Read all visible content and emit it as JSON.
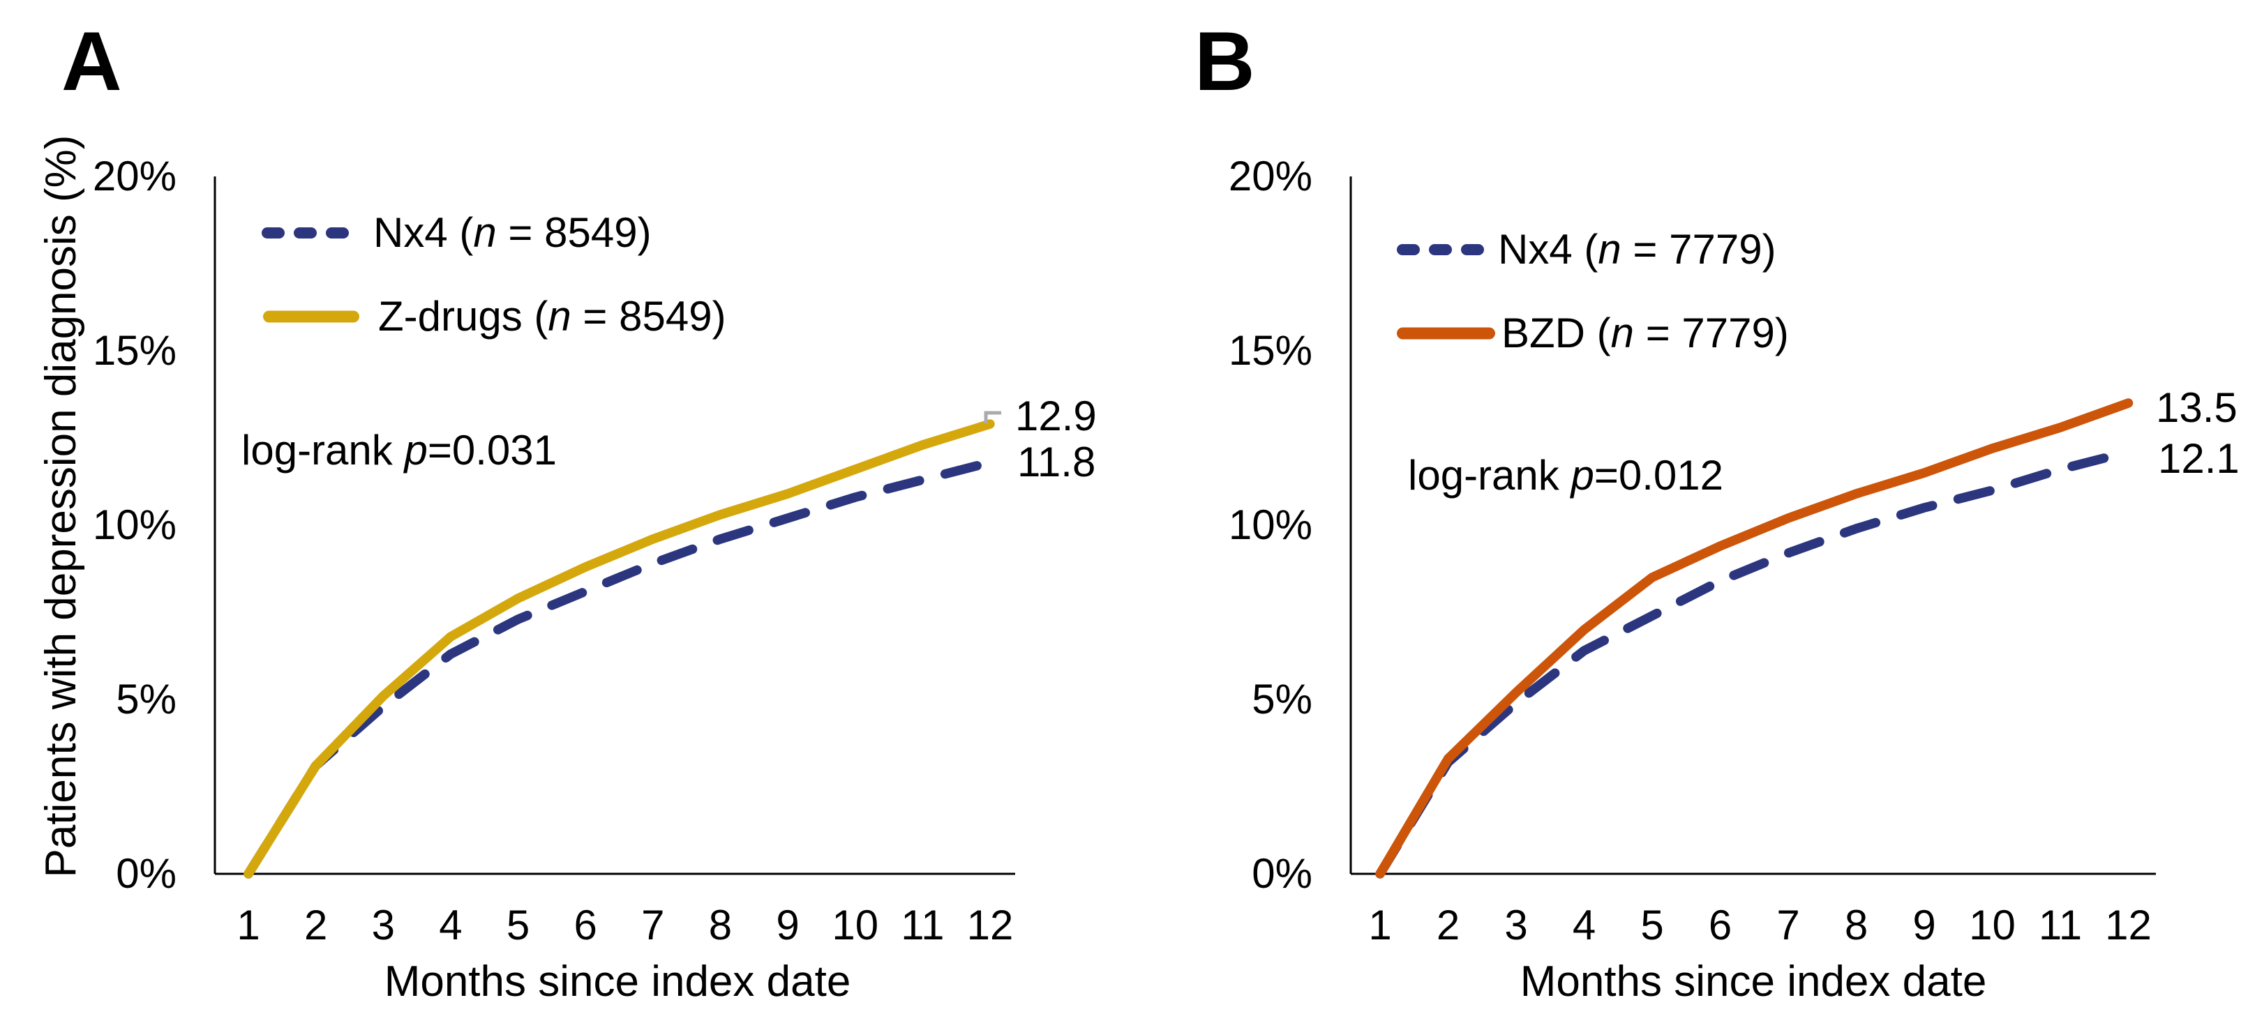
{
  "chart_data": [
    {
      "type": "line",
      "panel": "A",
      "xlabel": "Months since index date",
      "ylabel": "Patients with depression diagnosis (%)",
      "x": [
        1,
        2,
        3,
        4,
        5,
        6,
        7,
        8,
        9,
        10,
        11,
        12
      ],
      "x_tick_labels": [
        "1",
        "2",
        "3",
        "4",
        "5",
        "6",
        "7",
        "8",
        "9",
        "10",
        "11",
        "12"
      ],
      "ylim": [
        0,
        20
      ],
      "yticks": [
        0,
        5,
        10,
        15,
        20
      ],
      "ytick_labels": [
        "0%",
        "5%",
        "10%",
        "15%",
        "20%"
      ],
      "grid": false,
      "legend_position": "upper-left",
      "annotation": {
        "pre": "log-rank ",
        "italic": "p",
        "post": "=0.031"
      },
      "series": [
        {
          "name": "Nx4",
          "legend": {
            "pre": "Nx4 (",
            "italic": "n",
            "post": " = 8549)"
          },
          "style": "dashed",
          "color": "#2B367F",
          "values": [
            0,
            3.1,
            4.8,
            6.3,
            7.3,
            8.1,
            8.9,
            9.6,
            10.2,
            10.8,
            11.3,
            11.8
          ],
          "end_label": "11.8"
        },
        {
          "name": "Z-drugs",
          "legend": {
            "pre": "Z-drugs (",
            "italic": "n",
            "post": " = 8549)"
          },
          "style": "solid",
          "color": "#D4A80D",
          "values": [
            0,
            3.1,
            5.1,
            6.8,
            7.9,
            8.8,
            9.6,
            10.3,
            10.9,
            11.6,
            12.3,
            12.9
          ],
          "end_label": "12.9",
          "end_marker_color": "#ABABAB"
        }
      ]
    },
    {
      "type": "line",
      "panel": "B",
      "xlabel": "Months since index date",
      "ylabel": "",
      "x": [
        1,
        2,
        3,
        4,
        5,
        6,
        7,
        8,
        9,
        10,
        11,
        12
      ],
      "x_tick_labels": [
        "1",
        "2",
        "3",
        "4",
        "5",
        "6",
        "7",
        "8",
        "9",
        "10",
        "11",
        "12"
      ],
      "ylim": [
        0,
        20
      ],
      "yticks": [
        0,
        5,
        10,
        15,
        20
      ],
      "ytick_labels": [
        "0%",
        "5%",
        "10%",
        "15%",
        "20%"
      ],
      "grid": false,
      "legend_position": "upper-left",
      "annotation": {
        "pre": "log-rank ",
        "italic": "p",
        "post": "=0.012"
      },
      "series": [
        {
          "name": "Nx4",
          "legend": {
            "pre": "Nx4 (",
            "italic": "n",
            "post": " = 7779)"
          },
          "style": "dashed",
          "color": "#2B367F",
          "values": [
            0,
            3.2,
            4.9,
            6.4,
            7.4,
            8.4,
            9.2,
            9.9,
            10.5,
            11.0,
            11.6,
            12.1
          ],
          "end_label": "12.1"
        },
        {
          "name": "BZD",
          "legend": {
            "pre": "BZD (",
            "italic": "n",
            "post": " = 7779)"
          },
          "style": "solid",
          "color": "#CC550A",
          "values": [
            0,
            3.3,
            5.2,
            7.0,
            8.5,
            9.4,
            10.2,
            10.9,
            11.5,
            12.2,
            12.8,
            13.5
          ],
          "end_label": "13.5"
        }
      ]
    }
  ]
}
